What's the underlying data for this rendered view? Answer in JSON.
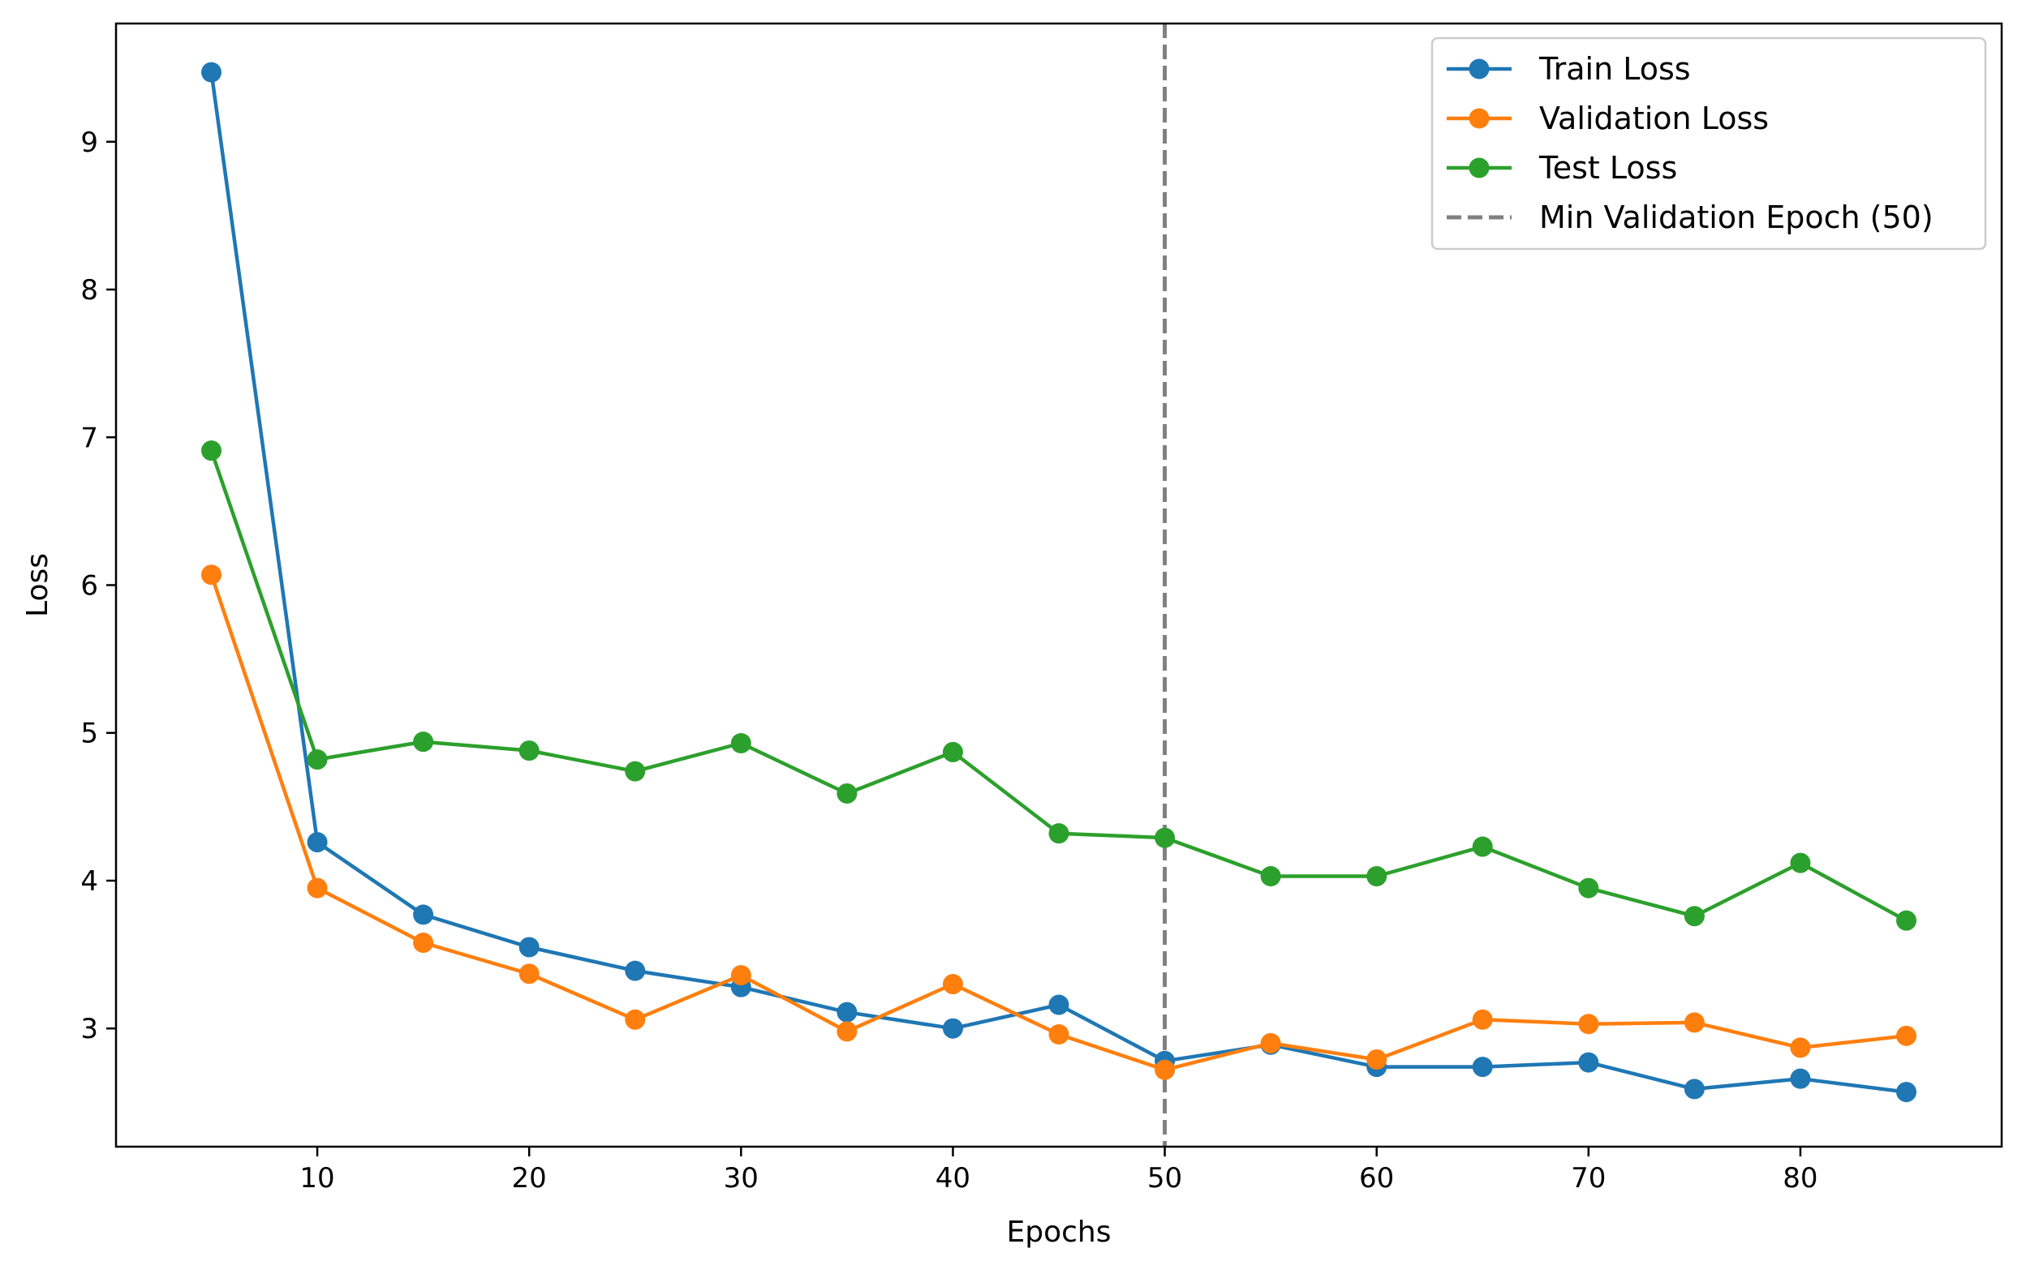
{
  "chart_data": {
    "type": "line",
    "xlabel": "Epochs",
    "ylabel": "Loss",
    "xlim": [
      0.5,
      89.5
    ],
    "ylim": [
      2.2,
      9.8
    ],
    "xticks": [
      10,
      20,
      30,
      40,
      50,
      60,
      70,
      80
    ],
    "yticks": [
      3,
      4,
      5,
      6,
      7,
      8,
      9
    ],
    "grid": false,
    "legend_position": "top-right",
    "x": [
      5,
      10,
      15,
      20,
      25,
      30,
      35,
      40,
      45,
      50,
      55,
      60,
      65,
      70,
      75,
      80,
      85
    ],
    "series": [
      {
        "name": "Train Loss",
        "color": "#1f77b4",
        "marker": "circle",
        "values": [
          9.47,
          4.26,
          3.77,
          3.55,
          3.39,
          3.28,
          3.11,
          3.0,
          3.16,
          2.78,
          2.89,
          2.74,
          2.74,
          2.77,
          2.59,
          2.66,
          2.57
        ]
      },
      {
        "name": "Validation Loss",
        "color": "#ff7f0e",
        "marker": "circle",
        "values": [
          6.07,
          3.95,
          3.58,
          3.37,
          3.06,
          3.36,
          2.98,
          3.3,
          2.96,
          2.72,
          2.9,
          2.79,
          3.06,
          3.03,
          3.04,
          2.87,
          2.95
        ]
      },
      {
        "name": "Test Loss",
        "color": "#2ca02c",
        "marker": "circle",
        "values": [
          6.91,
          4.82,
          4.94,
          4.88,
          4.74,
          4.93,
          4.59,
          4.87,
          4.32,
          4.29,
          4.03,
          4.03,
          4.23,
          3.95,
          3.76,
          4.12,
          3.73
        ]
      }
    ],
    "reference_lines": [
      {
        "name": "Min Validation Epoch (50)",
        "orientation": "vertical",
        "x": 50,
        "color": "#808080",
        "style": "dashed"
      }
    ]
  }
}
